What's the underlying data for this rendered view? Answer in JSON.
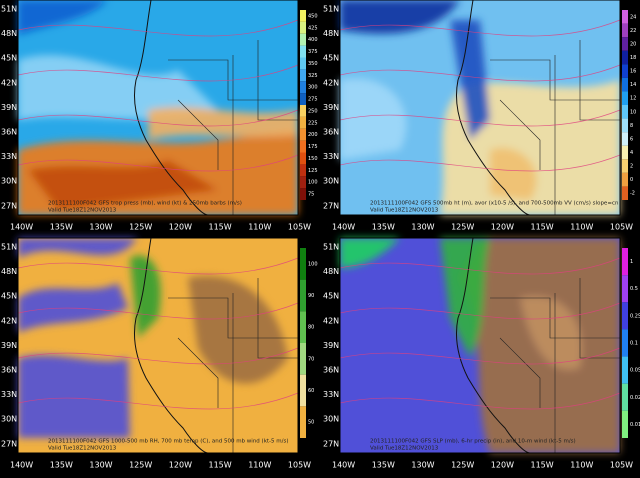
{
  "lat_labels": [
    "51N",
    "48N",
    "45N",
    "42N",
    "39N",
    "36N",
    "33N",
    "30N",
    "27N"
  ],
  "lon_labels": [
    "140W",
    "135W",
    "130W",
    "125W",
    "120W",
    "115W",
    "110W",
    "105W"
  ],
  "panels": [
    {
      "title": "2013111100F042 GFS trop press (mb), wind (kt) & 250mb barbs (m/s)",
      "valid": "Valid Tue18Z12NOV2013",
      "colorbar": [
        "450",
        "425",
        "400",
        "375",
        "350",
        "325",
        "300",
        "275",
        "250",
        "225",
        "200",
        "175",
        "150",
        "125",
        "100",
        "75"
      ]
    },
    {
      "title": "2013111100F042 GFS 500mb ht (m), avor (x10-5 /s), and 700-500mb VV (cm/s) slope=cn",
      "valid": "Valid Tue18Z12NOV2013",
      "colorbar": [
        "24",
        "22",
        "20",
        "18",
        "16",
        "14",
        "12",
        "10",
        "8",
        "6",
        "4",
        "2",
        "0",
        "-2"
      ]
    },
    {
      "title": "2013111100F042 GFS 1000-500 mb RH, 700 mb temp (C), and 500 mb wind (kt-5 m/s)",
      "valid": "Valid Tue18Z12NOV2013",
      "colorbar": [
        "100",
        "90",
        "80",
        "70",
        "60",
        "50"
      ]
    },
    {
      "title": "2013111100F042 GFS SLP (mb), 6-hr precip (in), and 10-m wind (kt-5 m/s)",
      "valid": "Valid Tue18Z12NOV2013",
      "colorbar": [
        "1",
        "0.5",
        "0.25",
        "0.1",
        "0.05",
        "0.02",
        "0.01"
      ]
    }
  ]
}
